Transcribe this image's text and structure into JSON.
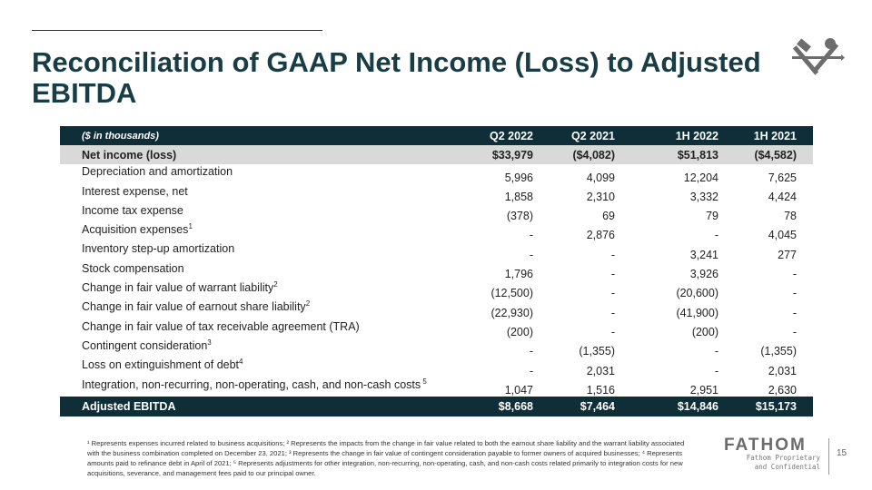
{
  "title": "Reconciliation of GAAP Net Income (Loss) to Adjusted EBITDA",
  "table": {
    "header": {
      "label": "($ in thousands)",
      "cols": [
        "Q2 2022",
        "Q2 2021",
        "1H 2022",
        "1H 2021"
      ]
    },
    "net_income": {
      "label": "Net income (loss)",
      "values": [
        "$33,979",
        "($4,082)",
        "$51,813",
        "($4,582)"
      ]
    },
    "rows": [
      {
        "label": "Depreciation and amortization",
        "sup": "",
        "values": [
          "5,996",
          "4,099",
          "12,204",
          "7,625"
        ]
      },
      {
        "label": "Interest expense, net",
        "sup": "",
        "values": [
          "1,858",
          "2,310",
          "3,332",
          "4,424"
        ]
      },
      {
        "label": "Income tax expense",
        "sup": "",
        "values": [
          "(378)",
          "69",
          "79",
          "78"
        ]
      },
      {
        "label": "Acquisition expenses",
        "sup": "1",
        "values": [
          "-",
          "2,876",
          "-",
          "4,045"
        ]
      },
      {
        "label": "Inventory step-up amortization",
        "sup": "",
        "values": [
          "-",
          "-",
          "3,241",
          "277"
        ]
      },
      {
        "label": "Stock compensation",
        "sup": "",
        "values": [
          "1,796",
          "-",
          "3,926",
          "-"
        ]
      },
      {
        "label": "Change in fair value of warrant liability",
        "sup": "2",
        "values": [
          "(12,500)",
          "-",
          "(20,600)",
          "-"
        ]
      },
      {
        "label": "Change in fair value of earnout share liability",
        "sup": "2",
        "values": [
          "(22,930)",
          "-",
          "(41,900)",
          "-"
        ]
      },
      {
        "label": "Change in fair value of tax receivable agreement (TRA)",
        "sup": "",
        "values": [
          "(200)",
          "-",
          "(200)",
          "-"
        ]
      },
      {
        "label": "Contingent consideration",
        "sup": "3",
        "values": [
          "-",
          "(1,355)",
          "-",
          "(1,355)"
        ]
      },
      {
        "label": "Loss on extinguishment of debt",
        "sup": "4",
        "values": [
          "-",
          "2,031",
          "-",
          "2,031"
        ]
      },
      {
        "label": "Integration, non-recurring, non-operating, cash, and non-cash costs",
        "sup": " 5",
        "values": [
          "1,047",
          "1,516",
          "2,951",
          "2,630"
        ]
      }
    ],
    "adjusted": {
      "label": "Adjusted EBITDA",
      "values": [
        "$8,668",
        "$7,464",
        "$14,846",
        "$15,173"
      ]
    }
  },
  "footnote": "¹ Represents expenses incurred related to business acquisitions; ² Represents the impacts from the change in fair value related to both the earnout share liability and the warrant liability associated with the business combination completed on December 23, 2021; ³ Represents the change in fair value of contingent consideration payable to former owners of acquired businesses; ⁴ Represents amounts paid to refinance debt in April of 2021; ⁵ Represents adjustments for other integration, non-recurring, non-operating, cash, and non-cash costs related primarily to integration costs for new acquisitions, severance, and management fees paid to our principal owner.",
  "footer": {
    "brand": "FATHOM",
    "line1": "Fathom Proprietary",
    "line2": "and Confidential",
    "page": "15"
  }
}
